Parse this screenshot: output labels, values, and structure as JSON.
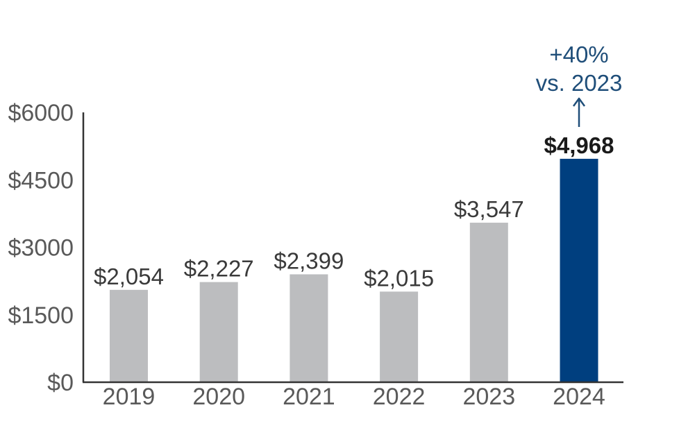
{
  "chart_data": {
    "type": "bar",
    "title": "",
    "xlabel": "",
    "ylabel": "",
    "categories": [
      "2019",
      "2020",
      "2021",
      "2022",
      "2023",
      "2024"
    ],
    "values": [
      2054,
      2227,
      2399,
      2015,
      3547,
      4968
    ],
    "value_labels": [
      "$2,054",
      "$2,227",
      "$2,399",
      "$2,015",
      "$3,547",
      "$4,968"
    ],
    "ylim": [
      0,
      6000
    ],
    "yticks": [
      0,
      1500,
      3000,
      4500,
      6000
    ],
    "ytick_labels": [
      "$0",
      "$1500",
      "$3000",
      "$4500",
      "$6000"
    ],
    "grid": false,
    "legend": "none",
    "highlight_index": 5,
    "colors": {
      "bar": "#bcbdbf",
      "highlight_bar": "#003f7f",
      "axis": "#333333",
      "annotation": "#1f4e79"
    },
    "annotation": {
      "lines": [
        "+40%",
        "vs. 2023"
      ],
      "target_index": 5,
      "arrow": "up-arrow"
    }
  }
}
